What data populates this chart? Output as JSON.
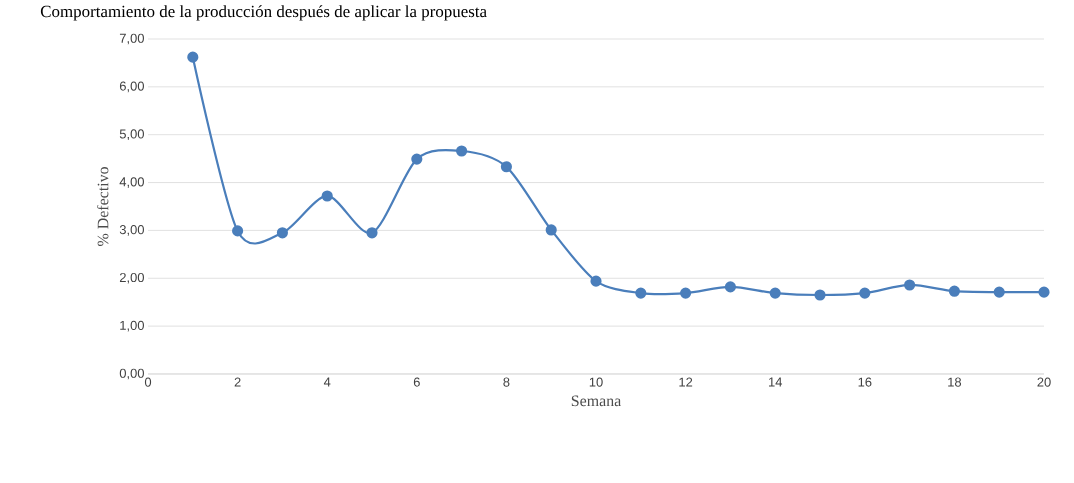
{
  "chart_data": {
    "type": "line",
    "title": "Comportamiento de la producción después de aplicar la propuesta",
    "xlabel": "Semana",
    "ylabel": "% Defectivo",
    "x": [
      1,
      2,
      3,
      4,
      5,
      6,
      7,
      8,
      9,
      10,
      11,
      12,
      13,
      14,
      15,
      16,
      17,
      18,
      19,
      20
    ],
    "series": [
      {
        "color": "#4a7ebb",
        "values": [
          6.62,
          2.99,
          2.95,
          3.72,
          2.95,
          4.49,
          4.66,
          4.33,
          3.01,
          1.94,
          1.69,
          1.69,
          1.82,
          1.69,
          1.65,
          1.69,
          1.86,
          1.73,
          1.71,
          1.71
        ]
      }
    ],
    "xlim": [
      0,
      20
    ],
    "xticks": [
      0,
      2,
      4,
      6,
      8,
      10,
      12,
      14,
      16,
      18,
      20
    ],
    "ylim": [
      0,
      7
    ],
    "yticks": [
      {
        "value": 0,
        "label": "0,00"
      },
      {
        "value": 1,
        "label": "1,00"
      },
      {
        "value": 2,
        "label": "2,00"
      },
      {
        "value": 3,
        "label": "3,00"
      },
      {
        "value": 4,
        "label": "4,00"
      },
      {
        "value": 5,
        "label": "5,00"
      },
      {
        "value": 6,
        "label": "6,00"
      },
      {
        "value": 7,
        "label": "7,00"
      }
    ],
    "grid": "y",
    "marker": "circle",
    "line_style": "solid"
  }
}
